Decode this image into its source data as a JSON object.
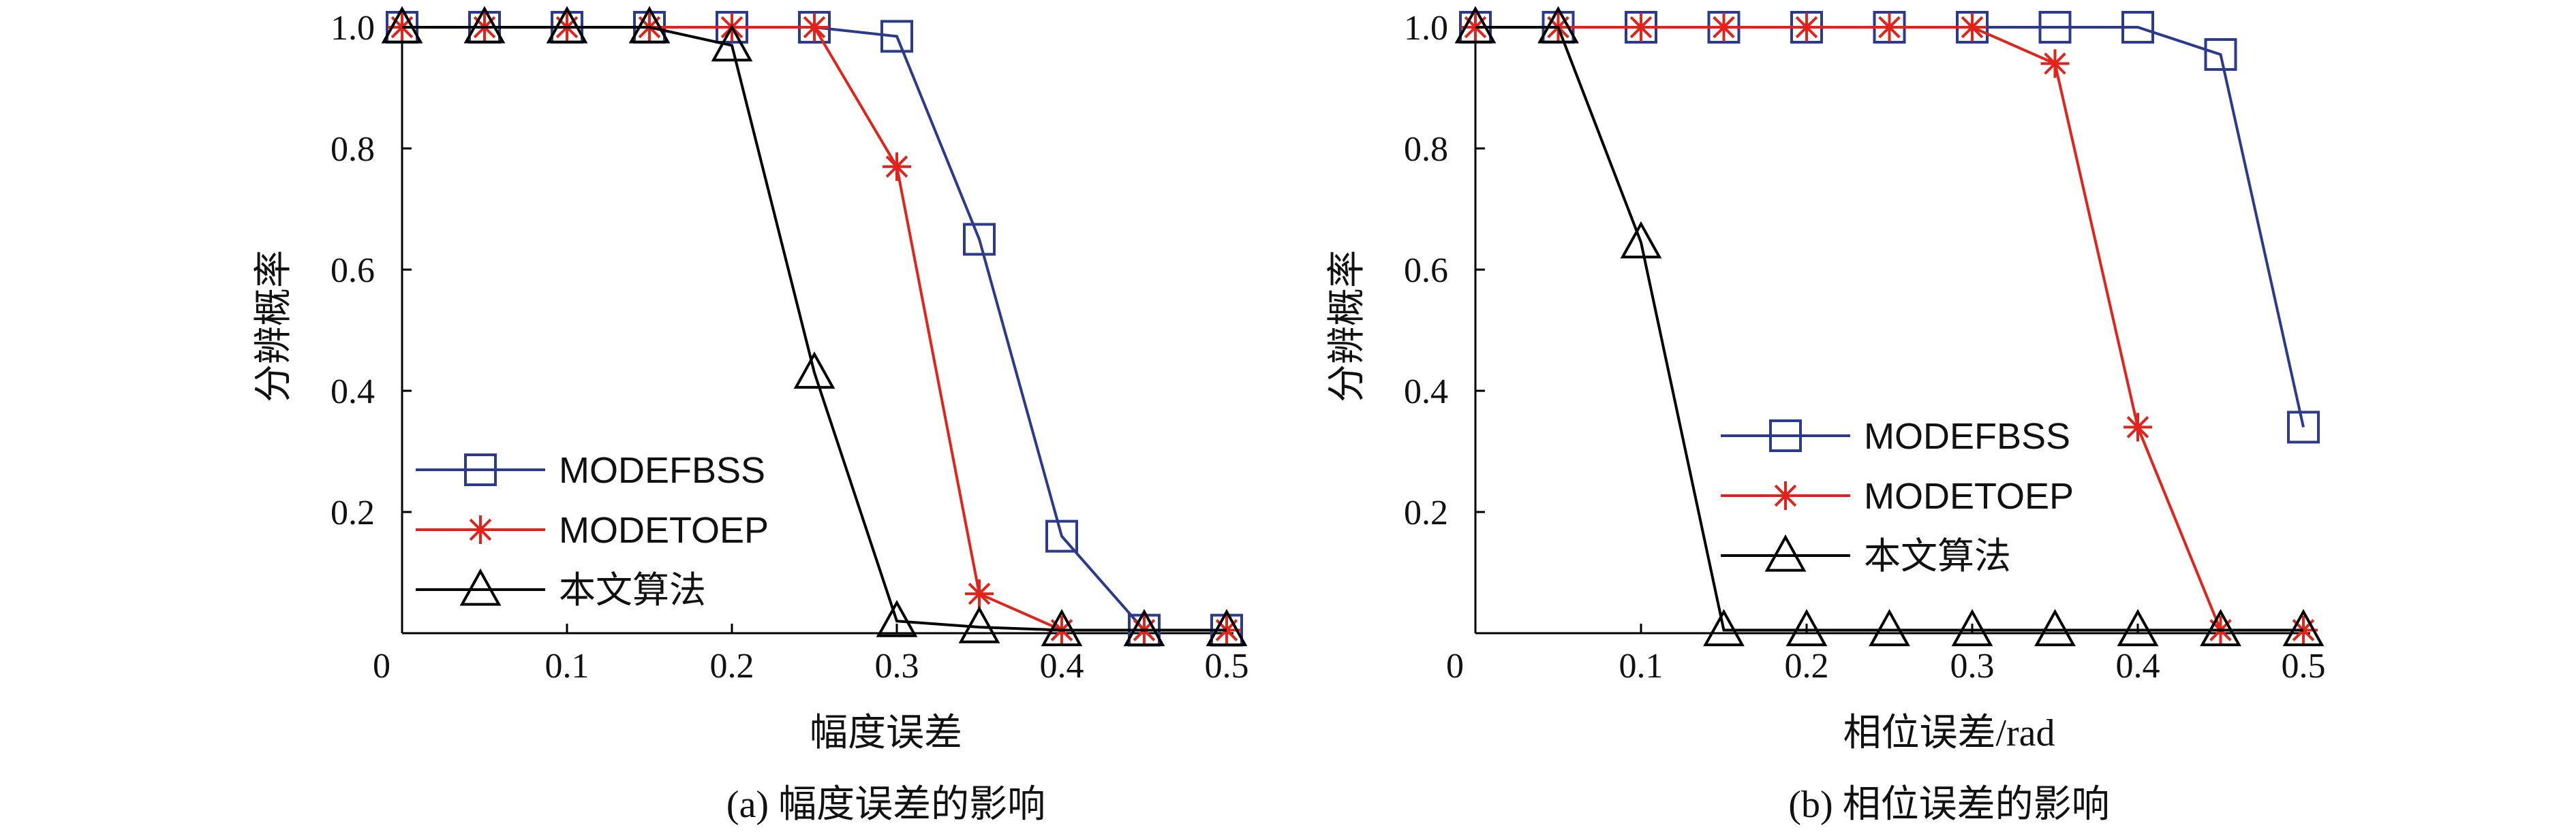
{
  "chart_data": [
    {
      "type": "line",
      "caption": "(a) 幅度误差的影响",
      "xlabel": "幅度误差",
      "ylabel": "分辨概率",
      "xlim": [
        0,
        0.5
      ],
      "ylim": [
        0,
        1.0
      ],
      "x_ticks": [
        "0",
        "0.1",
        "0.2",
        "0.3",
        "0.4",
        "0.5"
      ],
      "y_ticks": [
        "0.2",
        "0.4",
        "0.6",
        "0.8",
        "1.0"
      ],
      "legend_position": "bottom-left",
      "x": [
        0.0,
        0.05,
        0.1,
        0.15,
        0.2,
        0.25,
        0.3,
        0.35,
        0.4,
        0.45,
        0.5
      ],
      "series": [
        {
          "name": "MODEFBSS",
          "color": "#2b3a8c",
          "marker": "square",
          "values": [
            1.0,
            1.0,
            1.0,
            1.0,
            1.0,
            1.0,
            0.985,
            0.65,
            0.16,
            0.005,
            0.005
          ]
        },
        {
          "name": "MODETOEP",
          "color": "#e0241b",
          "marker": "asterisk",
          "values": [
            1.0,
            1.0,
            1.0,
            1.0,
            1.0,
            1.0,
            0.77,
            0.065,
            0.005,
            0.005,
            0.005
          ]
        },
        {
          "name": "本文算法",
          "color": "#000000",
          "marker": "triangle",
          "values": [
            1.0,
            1.0,
            1.0,
            1.0,
            0.97,
            0.43,
            0.02,
            0.01,
            0.005,
            0.005,
            0.005
          ]
        }
      ]
    },
    {
      "type": "line",
      "caption": "(b) 相位误差的影响",
      "xlabel": "相位误差/rad",
      "ylabel": "分辨概率",
      "xlim": [
        0,
        0.5
      ],
      "ylim": [
        0,
        1.0
      ],
      "x_ticks": [
        "0",
        "0.1",
        "0.2",
        "0.3",
        "0.4",
        "0.5"
      ],
      "y_ticks": [
        "0.2",
        "0.4",
        "0.6",
        "0.8",
        "1.0"
      ],
      "legend_position": "middle-left",
      "x": [
        0.0,
        0.05,
        0.1,
        0.15,
        0.2,
        0.25,
        0.3,
        0.35,
        0.4,
        0.45,
        0.5
      ],
      "series": [
        {
          "name": "MODEFBSS",
          "color": "#2b3a8c",
          "marker": "square",
          "values": [
            1.0,
            1.0,
            1.0,
            1.0,
            1.0,
            1.0,
            1.0,
            1.0,
            1.0,
            0.955,
            0.34
          ]
        },
        {
          "name": "MODETOEP",
          "color": "#e0241b",
          "marker": "asterisk",
          "values": [
            1.0,
            1.0,
            1.0,
            1.0,
            1.0,
            1.0,
            1.0,
            0.94,
            0.34,
            0.005,
            0.005
          ]
        },
        {
          "name": "本文算法",
          "color": "#000000",
          "marker": "triangle",
          "values": [
            1.0,
            1.0,
            0.645,
            0.005,
            0.005,
            0.005,
            0.005,
            0.005,
            0.005,
            0.005,
            0.005
          ]
        }
      ]
    }
  ]
}
